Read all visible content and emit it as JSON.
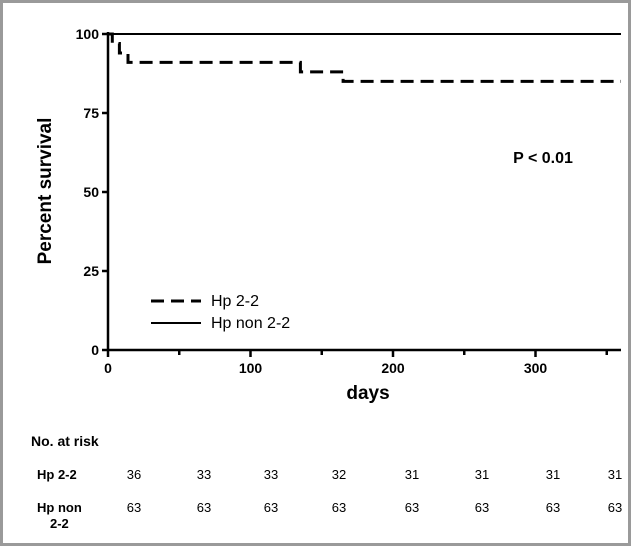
{
  "chart_data": {
    "type": "line",
    "title": "",
    "xlabel": "days",
    "ylabel": "Percent survival",
    "xlim": [
      0,
      360
    ],
    "ylim": [
      0,
      100
    ],
    "x_ticks": [
      0,
      100,
      200,
      300
    ],
    "x_tick_labels": [
      "0",
      "100",
      "200",
      "300"
    ],
    "y_ticks": [
      0,
      25,
      50,
      75,
      100
    ],
    "y_tick_labels": [
      "0",
      "25",
      "50",
      "75",
      "100"
    ],
    "grid": false,
    "legend_position": "bottom-left",
    "annotation": "P < 0.01",
    "series": [
      {
        "name": "Hp 2-2",
        "style": "dashed",
        "x": [
          0,
          3,
          3,
          8,
          8,
          14,
          14,
          22,
          22,
          135,
          135,
          165,
          165,
          360
        ],
        "y": [
          100,
          100,
          97,
          97,
          94,
          94,
          91,
          91,
          91,
          91,
          88,
          88,
          85,
          85
        ]
      },
      {
        "name": "Hp non 2-2",
        "style": "solid",
        "x": [
          0,
          360
        ],
        "y": [
          100,
          100
        ]
      }
    ]
  },
  "risk_table": {
    "title": "No. at risk",
    "rows": [
      {
        "name": "Hp 2-2",
        "values": [
          "36",
          "33",
          "33",
          "32",
          "31",
          "31",
          "31",
          "31"
        ]
      },
      {
        "name": "Hp non\n2-2",
        "values": [
          "63",
          "63",
          "63",
          "63",
          "63",
          "63",
          "63",
          "63"
        ]
      }
    ]
  }
}
